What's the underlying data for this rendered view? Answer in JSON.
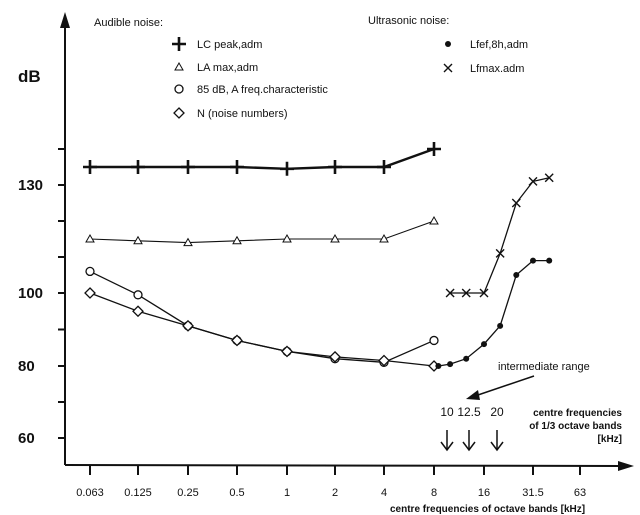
{
  "chart_data": {
    "type": "line",
    "ylabel": "dB",
    "y_ticks": [
      60,
      80,
      100,
      130
    ],
    "x_ticks": [
      "0.063",
      "0.125",
      "0.25",
      "0.5",
      "1",
      "2",
      "4",
      "8",
      "16",
      "31.5",
      "63"
    ],
    "xlabel": "centre frequencies of octave bands [kHz]",
    "legend": {
      "audible_title": "Audible noise:",
      "ultrasonic_title": "Ultrasonic noise:"
    },
    "series": [
      {
        "name": "LC peak,adm",
        "group": "audible",
        "marker": "plus",
        "x": [
          "0.063",
          "0.125",
          "0.25",
          "0.5",
          "1",
          "2",
          "4",
          "8"
        ],
        "y": [
          135,
          135,
          135,
          135,
          134.5,
          135,
          135,
          140
        ]
      },
      {
        "name": "LA max,adm",
        "group": "audible",
        "marker": "triangle",
        "x": [
          "0.063",
          "0.125",
          "0.25",
          "0.5",
          "1",
          "2",
          "4",
          "8"
        ],
        "y": [
          115,
          114.5,
          114,
          114.5,
          115,
          115,
          115,
          120
        ]
      },
      {
        "name": "85 dB, A freq.characteristic",
        "group": "audible",
        "marker": "circle",
        "x": [
          "0.063",
          "0.125",
          "0.25",
          "0.5",
          "1",
          "2",
          "4",
          "8"
        ],
        "y": [
          106,
          99.5,
          91,
          87,
          84,
          82,
          81,
          87
        ]
      },
      {
        "name": "N (noise numbers)",
        "group": "audible",
        "marker": "diamond",
        "x": [
          "0.063",
          "0.125",
          "0.25",
          "0.5",
          "1",
          "2",
          "4",
          "8"
        ],
        "y": [
          100,
          95,
          91,
          87,
          84,
          82.5,
          81.5,
          80
        ]
      },
      {
        "name": "Lfef,8h,adm",
        "group": "ultrasonic",
        "marker": "dot",
        "x": [
          8.5,
          10,
          12.5,
          16,
          20,
          25,
          31.5,
          40
        ],
        "y": [
          80,
          80.5,
          82,
          86,
          91,
          105,
          109,
          109
        ]
      },
      {
        "name": "Lfmax.adm",
        "group": "ultrasonic",
        "marker": "x",
        "x": [
          10,
          12.5,
          16,
          20,
          25,
          31.5,
          40
        ],
        "y": [
          100,
          100,
          100,
          111,
          125,
          131,
          132
        ]
      }
    ],
    "annotations": {
      "intermediate": "intermediate range",
      "third_octave_values": [
        "10",
        "12.5",
        "20"
      ],
      "third_octave_caption": [
        "centre frequencies",
        "of 1/3 octave bands",
        "[kHz]"
      ]
    },
    "grid": false
  }
}
